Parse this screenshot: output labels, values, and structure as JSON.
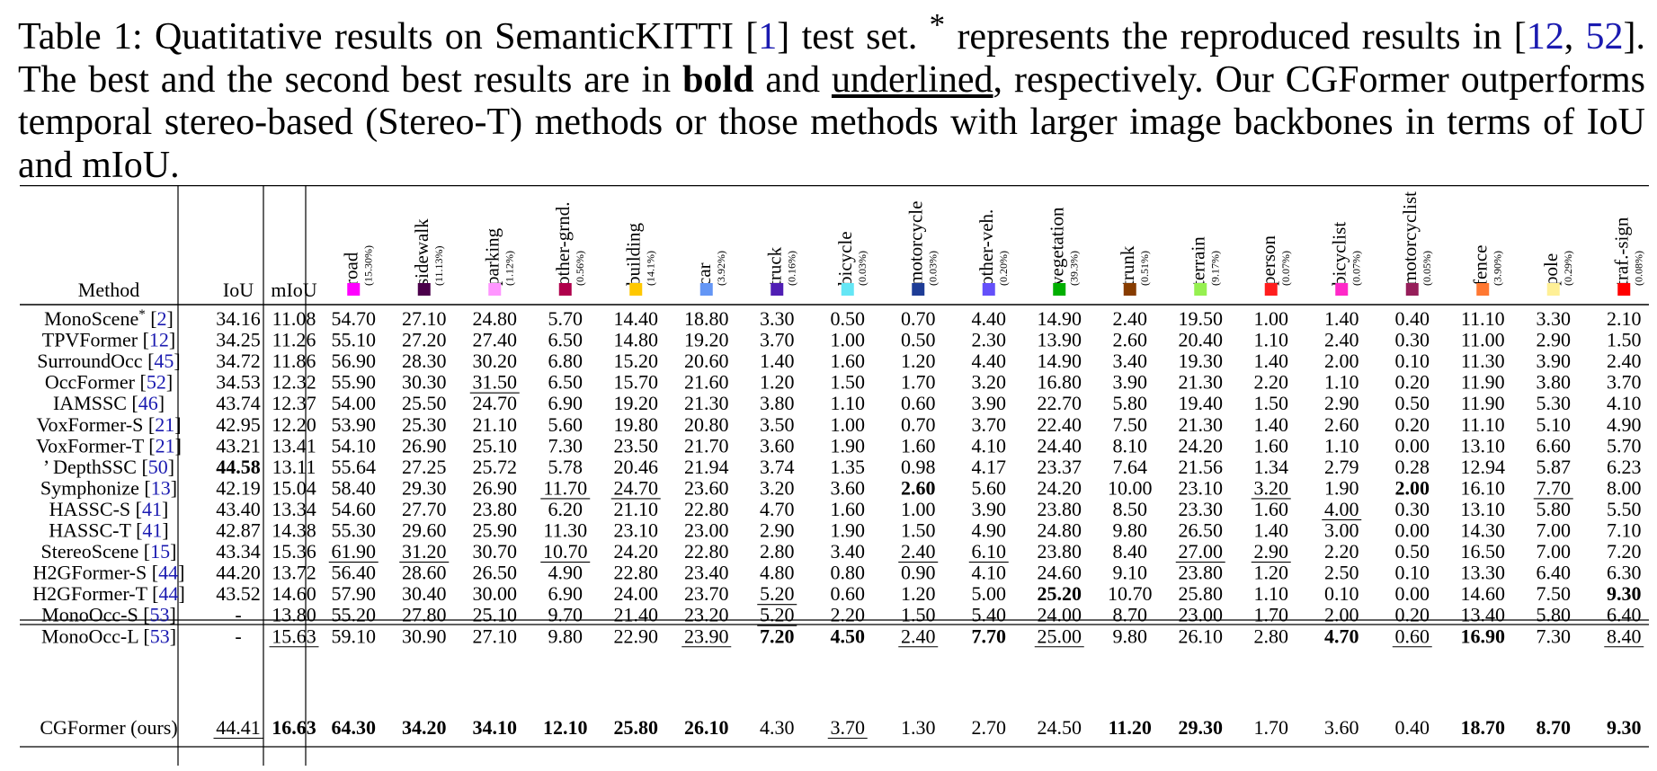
{
  "caption": {
    "prefix": "Table 1: Quatitative results on SemanticKITTI [",
    "ref1": "1",
    "mid1": "] test set. ",
    "star": "*",
    "mid2": " represents the reproduced results in [",
    "ref2a": "12",
    "sep": ", ",
    "ref2b": "52",
    "mid3": "]. The best and the second best results are in ",
    "bold_word": "bold",
    "and_word": " and ",
    "underlined_word": "underlined",
    "suffix": ", respectively. Our CGFormer outperforms temporal stereo-based (Stereo-T) methods or those methods with larger image backbones in terms of IoU and mIoU."
  },
  "table": {
    "header": {
      "method": "Method",
      "iou": "IoU",
      "miou": "mIoU"
    },
    "classes": [
      {
        "name": "road",
        "pct": "(15.30%)",
        "color": "#ff00ff"
      },
      {
        "name": "sidewalk",
        "pct": "(11.13%)",
        "color": "#4b004b"
      },
      {
        "name": "parking",
        "pct": "(1.12%)",
        "color": "#ff96ff"
      },
      {
        "name": "other-grnd.",
        "pct": "(0.56%)",
        "color": "#af004b"
      },
      {
        "name": "building",
        "pct": "(14.1%)",
        "color": "#ffc800"
      },
      {
        "name": "car",
        "pct": "(3.92%)",
        "color": "#6496f5"
      },
      {
        "name": "truck",
        "pct": "(0.16%)",
        "color": "#501eb4"
      },
      {
        "name": "bicycle",
        "pct": "(0.03%)",
        "color": "#64e6f5"
      },
      {
        "name": "motorcycle",
        "pct": "(0.03%)",
        "color": "#1e3c96"
      },
      {
        "name": "other-veh.",
        "pct": "(0.20%)",
        "color": "#6450fa"
      },
      {
        "name": "vegetation",
        "pct": "(39.3%)",
        "color": "#00af00"
      },
      {
        "name": "trunk",
        "pct": "(0.51%)",
        "color": "#873c00"
      },
      {
        "name": "terrain",
        "pct": "(9.17%)",
        "color": "#96f050"
      },
      {
        "name": "person",
        "pct": "(0.07%)",
        "color": "#ff1e1e"
      },
      {
        "name": "bicyclist",
        "pct": "(0.07%)",
        "color": "#ff28c8"
      },
      {
        "name": "motorcyclist",
        "pct": "(0.05%)",
        "color": "#961e5a"
      },
      {
        "name": "fence",
        "pct": "(3.90%)",
        "color": "#ff7832"
      },
      {
        "name": "pole",
        "pct": "(0.29%)",
        "color": "#fff096"
      },
      {
        "name": "traf.-sign",
        "pct": "(0.08%)",
        "color": "#ff0000"
      }
    ],
    "rows": [
      {
        "method": "MonoScene",
        "star": "*",
        "ref": "2",
        "iou": "34.16",
        "miou": "11.08",
        "vals": [
          "54.70",
          "27.10",
          "24.80",
          "5.70",
          "14.40",
          "18.80",
          "3.30",
          "0.50",
          "0.70",
          "4.40",
          "14.90",
          "2.40",
          "19.50",
          "1.00",
          "1.40",
          "0.40",
          "11.10",
          "3.30",
          "2.10"
        ]
      },
      {
        "method": "TPVFormer",
        "ref": "12",
        "iou": "34.25",
        "miou": "11.26",
        "vals": [
          "55.10",
          "27.20",
          "27.40",
          "6.50",
          "14.80",
          "19.20",
          "3.70",
          "1.00",
          "0.50",
          "2.30",
          "13.90",
          "2.60",
          "20.40",
          "1.10",
          "2.40",
          "0.30",
          "11.00",
          "2.90",
          "1.50"
        ]
      },
      {
        "method": "SurroundOcc",
        "ref": "45",
        "iou": "34.72",
        "miou": "11.86",
        "vals": [
          "56.90",
          "28.30",
          "30.20",
          "6.80",
          "15.20",
          "20.60",
          "1.40",
          "1.60",
          "1.20",
          "4.40",
          "14.90",
          "3.40",
          "19.30",
          "1.40",
          "2.00",
          "0.10",
          "11.30",
          "3.90",
          "2.40"
        ]
      },
      {
        "method": "OccFormer",
        "ref": "52",
        "iou": "34.53",
        "miou": "12.32",
        "vals": [
          "55.90",
          "30.30",
          "31.50",
          "6.50",
          "15.70",
          "21.60",
          "1.20",
          "1.50",
          "1.70",
          "3.20",
          "16.80",
          "3.90",
          "21.30",
          "2.20",
          "1.10",
          "0.20",
          "11.90",
          "3.80",
          "3.70"
        ],
        "u": [
          2
        ]
      },
      {
        "method": "IAMSSC",
        "ref": "46",
        "iou": "43.74",
        "miou": "12.37",
        "vals": [
          "54.00",
          "25.50",
          "24.70",
          "6.90",
          "19.20",
          "21.30",
          "3.80",
          "1.10",
          "0.60",
          "3.90",
          "22.70",
          "5.80",
          "19.40",
          "1.50",
          "2.90",
          "0.50",
          "11.90",
          "5.30",
          "4.10"
        ]
      },
      {
        "method": "VoxFormer-S",
        "ref": "21",
        "iou": "42.95",
        "miou": "12.20",
        "vals": [
          "53.90",
          "25.30",
          "21.10",
          "5.60",
          "19.80",
          "20.80",
          "3.50",
          "1.00",
          "0.70",
          "3.70",
          "22.40",
          "7.50",
          "21.30",
          "1.40",
          "2.60",
          "0.20",
          "11.10",
          "5.10",
          "4.90"
        ]
      },
      {
        "method": "VoxFormer-T",
        "ref": "21",
        "iou": "43.21",
        "miou": "13.41",
        "vals": [
          "54.10",
          "26.90",
          "25.10",
          "7.30",
          "23.50",
          "21.70",
          "3.60",
          "1.90",
          "1.60",
          "4.10",
          "24.40",
          "8.10",
          "24.20",
          "1.60",
          "1.10",
          "0.00",
          "13.10",
          "6.60",
          "5.70"
        ]
      },
      {
        "method": "’ DepthSSC",
        "ref": "50",
        "iou": "44.58",
        "miou": "13.11",
        "vals": [
          "55.64",
          "27.25",
          "25.72",
          "5.78",
          "20.46",
          "21.94",
          "3.74",
          "1.35",
          "0.98",
          "4.17",
          "23.37",
          "7.64",
          "21.56",
          "1.34",
          "2.79",
          "0.28",
          "12.94",
          "5.87",
          "6.23"
        ],
        "b": [
          "iou"
        ]
      },
      {
        "method": "Symphonize",
        "ref": "13",
        "iou": "42.19",
        "miou": "15.04",
        "vals": [
          "58.40",
          "29.30",
          "26.90",
          "11.70",
          "24.70",
          "23.60",
          "3.20",
          "3.60",
          "2.60",
          "5.60",
          "24.20",
          "10.00",
          "23.10",
          "3.20",
          "1.90",
          "2.00",
          "16.10",
          "7.70",
          "8.00"
        ],
        "u": [
          3,
          4,
          13,
          17
        ],
        "bv": [
          8,
          15
        ]
      },
      {
        "method": "HASSC-S",
        "ref": "41",
        "iou": "43.40",
        "miou": "13.34",
        "vals": [
          "54.60",
          "27.70",
          "23.80",
          "6.20",
          "21.10",
          "22.80",
          "4.70",
          "1.60",
          "1.00",
          "3.90",
          "23.80",
          "8.50",
          "23.30",
          "1.60",
          "4.00",
          "0.30",
          "13.10",
          "5.80",
          "5.50"
        ],
        "u": [
          14
        ]
      },
      {
        "method": "HASSC-T",
        "ref": "41",
        "iou": "42.87",
        "miou": "14.38",
        "vals": [
          "55.30",
          "29.60",
          "25.90",
          "11.30",
          "23.10",
          "23.00",
          "2.90",
          "1.90",
          "1.50",
          "4.90",
          "24.80",
          "9.80",
          "26.50",
          "1.40",
          "3.00",
          "0.00",
          "14.30",
          "7.00",
          "7.10"
        ]
      },
      {
        "method": "StereoScene",
        "ref": "15",
        "iou": "43.34",
        "miou": "15.36",
        "vals": [
          "61.90",
          "31.20",
          "30.70",
          "10.70",
          "24.20",
          "22.80",
          "2.80",
          "3.40",
          "2.40",
          "6.10",
          "23.80",
          "8.40",
          "27.00",
          "2.90",
          "2.20",
          "0.50",
          "16.50",
          "7.00",
          "7.20"
        ],
        "u": [
          0,
          1,
          3,
          8,
          9,
          12,
          13
        ]
      },
      {
        "method": "H2GFormer-S",
        "ref": "44",
        "iou": "44.20",
        "miou": "13.72",
        "vals": [
          "56.40",
          "28.60",
          "26.50",
          "4.90",
          "22.80",
          "23.40",
          "4.80",
          "0.80",
          "0.90",
          "4.10",
          "24.60",
          "9.10",
          "23.80",
          "1.20",
          "2.50",
          "0.10",
          "13.30",
          "6.40",
          "6.30"
        ]
      },
      {
        "method": "H2GFormer-T",
        "ref": "44",
        "iou": "43.52",
        "miou": "14.60",
        "vals": [
          "57.90",
          "30.40",
          "30.00",
          "6.90",
          "24.00",
          "23.70",
          "5.20",
          "0.60",
          "1.20",
          "5.00",
          "25.20",
          "10.70",
          "25.80",
          "1.10",
          "0.10",
          "0.00",
          "14.60",
          "7.50",
          "9.30"
        ],
        "u": [
          6
        ],
        "bv": [
          10,
          18
        ]
      },
      {
        "method": "MonoOcc-S",
        "ref": "53",
        "iou": "-",
        "miou": "13.80",
        "vals": [
          "55.20",
          "27.80",
          "25.10",
          "9.70",
          "21.40",
          "23.20",
          "5.20",
          "2.20",
          "1.50",
          "5.40",
          "24.00",
          "8.70",
          "23.00",
          "1.70",
          "2.00",
          "0.20",
          "13.40",
          "5.80",
          "6.40"
        ],
        "u": [
          6
        ]
      },
      {
        "method": "MonoOcc-L",
        "ref": "53",
        "iou": "-",
        "miou": "15.63",
        "vals": [
          "59.10",
          "30.90",
          "27.10",
          "9.80",
          "22.90",
          "23.90",
          "7.20",
          "4.50",
          "2.40",
          "7.70",
          "25.00",
          "9.80",
          "26.10",
          "2.80",
          "4.70",
          "0.60",
          "16.90",
          "7.30",
          "8.40"
        ],
        "u": [
          5,
          8,
          10,
          15,
          18
        ],
        "um": [
          "miou"
        ],
        "bv": [
          6,
          7,
          9,
          14,
          16
        ]
      },
      {
        "method": "CGFormer (ours)",
        "iou": "44.41",
        "miou": "16.63",
        "vals": [
          "64.30",
          "34.20",
          "34.10",
          "12.10",
          "25.80",
          "26.10",
          "4.30",
          "3.70",
          "1.30",
          "2.70",
          "24.50",
          "11.20",
          "29.30",
          "1.70",
          "3.60",
          "0.40",
          "18.70",
          "8.70",
          "9.30"
        ],
        "um": [
          "iou"
        ],
        "b": [
          "miou"
        ],
        "u": [
          7
        ],
        "bv": [
          0,
          1,
          2,
          3,
          4,
          5,
          11,
          12,
          16,
          17,
          18
        ]
      }
    ]
  }
}
